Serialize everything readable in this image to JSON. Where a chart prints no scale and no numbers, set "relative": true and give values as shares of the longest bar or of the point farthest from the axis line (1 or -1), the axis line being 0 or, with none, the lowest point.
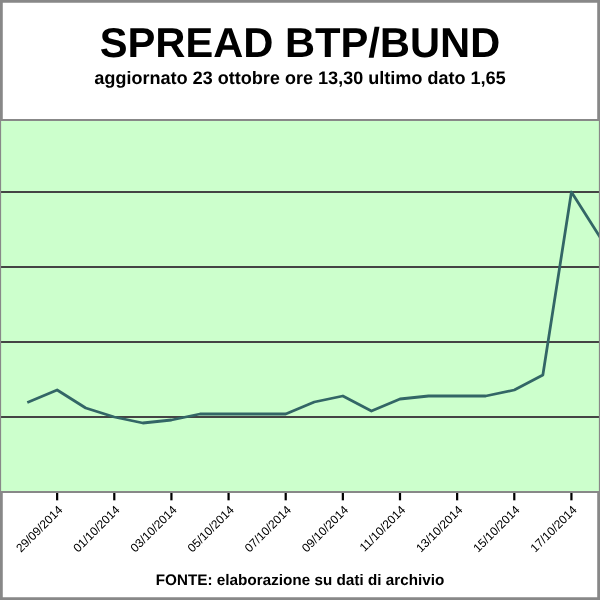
{
  "chart_data": {
    "type": "line",
    "title": "SPREAD BTP/BUND",
    "subtitle": "aggiornato 23 ottobre ore 13,30 ultimo dato 1,65",
    "relative": true,
    "grid": "y",
    "marker": "none",
    "line_style": "solid",
    "x": [
      "2014-09-28",
      "2014-09-29",
      "2014-09-30",
      "2014-10-01",
      "2014-10-02",
      "2014-10-03",
      "2014-10-04",
      "2014-10-05",
      "2014-10-06",
      "2014-10-07",
      "2014-10-08",
      "2014-10-09",
      "2014-10-10",
      "2014-10-11",
      "2014-10-12",
      "2014-10-13",
      "2014-10-14",
      "2014-10-15",
      "2014-10-16",
      "2014-10-17",
      "2014-10-18"
    ],
    "xlim": [
      "2014-09-27",
      "2014-10-18"
    ],
    "xticks": [
      {
        "value": "2014-09-29",
        "label": "29/09/2014"
      },
      {
        "value": "2014-10-01",
        "label": "01/10/2014"
      },
      {
        "value": "2014-10-03",
        "label": "03/10/2014"
      },
      {
        "value": "2014-10-05",
        "label": "05/10/2014"
      },
      {
        "value": "2014-10-07",
        "label": "07/10/2014"
      },
      {
        "value": "2014-10-09",
        "label": "09/10/2014"
      },
      {
        "value": "2014-10-11",
        "label": "11/10/2014"
      },
      {
        "value": "2014-10-13",
        "label": "13/10/2014"
      },
      {
        "value": "2014-10-15",
        "label": "15/10/2014"
      },
      {
        "value": "2014-10-17",
        "label": "17/10/2014"
      }
    ],
    "series": [
      {
        "color": "#336666",
        "values": [
          0.3,
          0.34,
          0.28,
          0.25,
          0.23,
          0.24,
          0.26,
          0.26,
          0.26,
          0.26,
          0.3,
          0.32,
          0.27,
          0.31,
          0.32,
          0.32,
          0.32,
          0.34,
          0.39,
          1.0,
          0.85
        ]
      }
    ],
    "annotations": [
      "FONTE: elaborazione su dati di archivio"
    ]
  }
}
